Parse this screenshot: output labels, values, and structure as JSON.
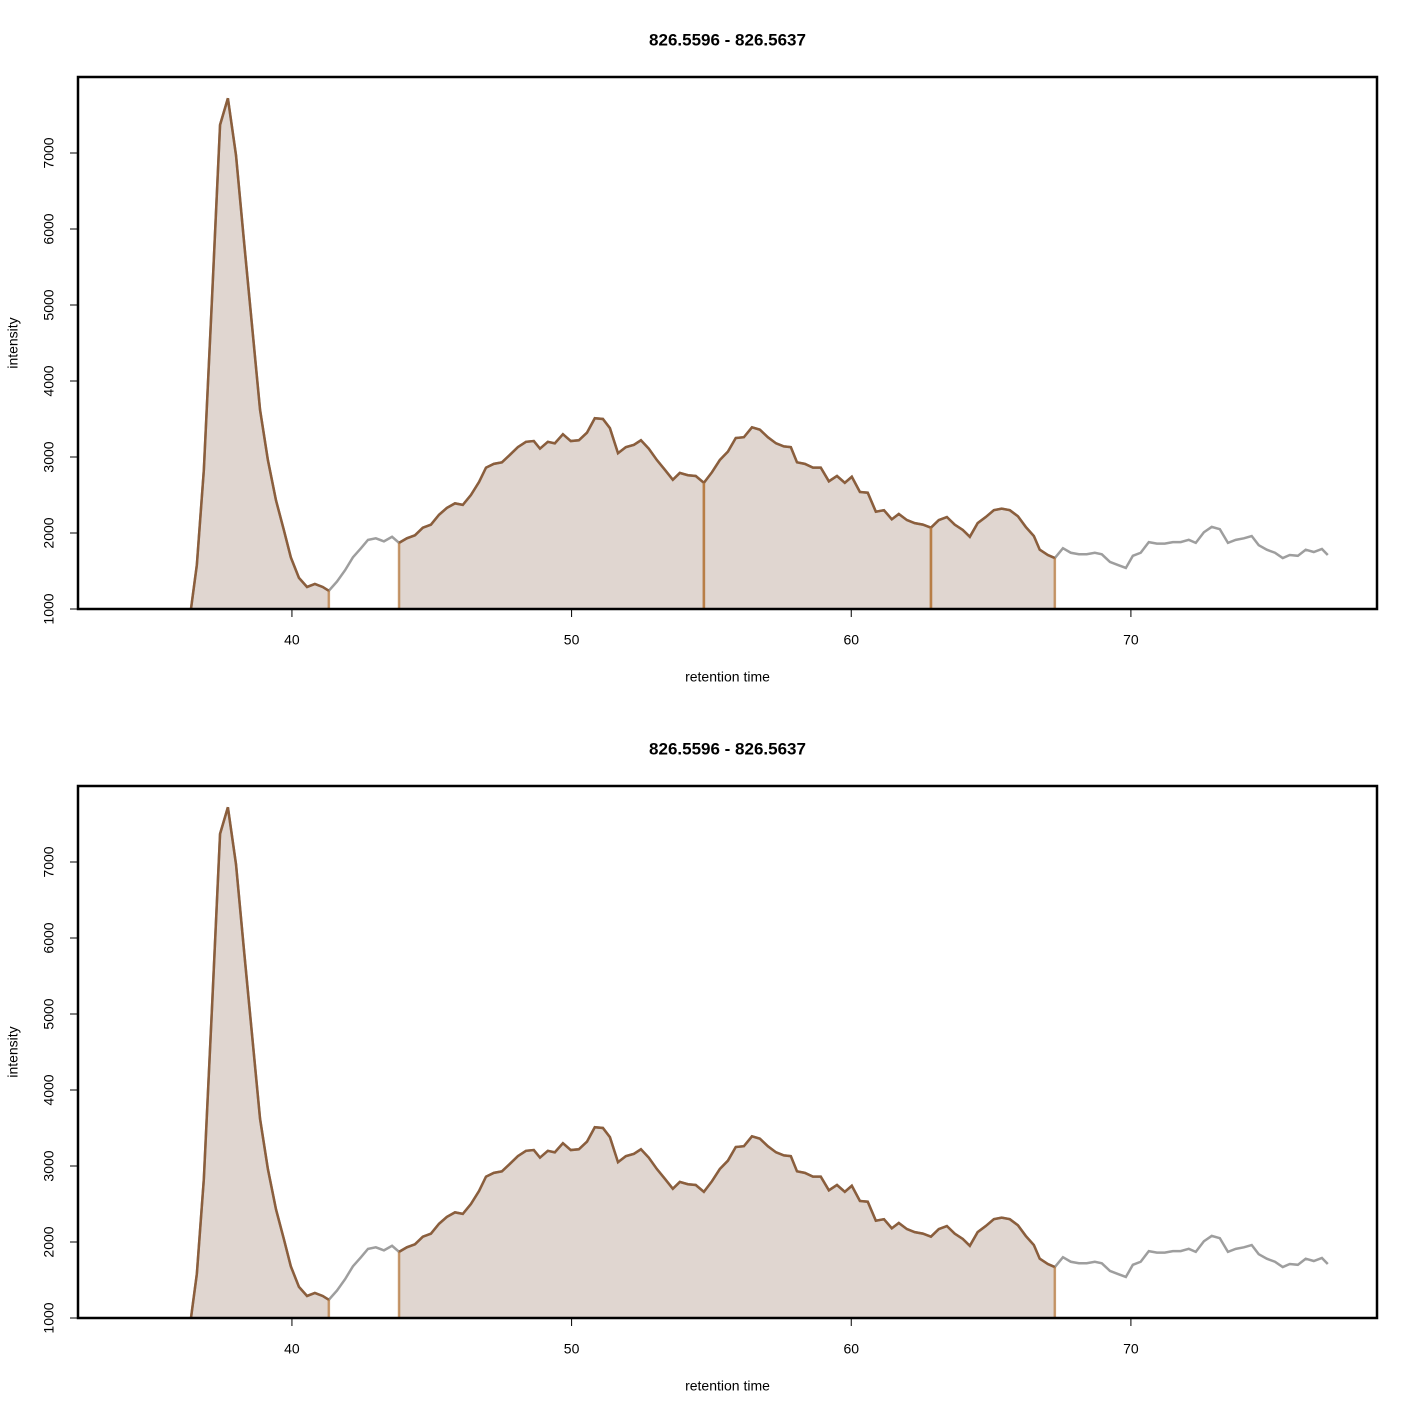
{
  "chart_data": [
    {
      "type": "line",
      "title": "826.5596 - 826.5637",
      "x_label": "retention time",
      "y_label": "intensity",
      "xlim": [
        32.35,
        78.8
      ],
      "ylim": [
        1000,
        8000
      ],
      "xticks": [
        40,
        50,
        60,
        70
      ],
      "yticks": [
        1000,
        2000,
        3000,
        4000,
        5000,
        6000,
        7000
      ],
      "trace_color": "#9e9e9e",
      "peak_line_color": "#8b5e3c",
      "peak_fill_color": "#e0d6d0",
      "peak_border_color": "#b5783e",
      "x": [
        36.39,
        36.6,
        36.85,
        37.14,
        37.43,
        37.71,
        38.0,
        38.28,
        38.57,
        38.86,
        39.14,
        39.43,
        39.71,
        39.96,
        40.25,
        40.54,
        40.82,
        41.1,
        41.32,
        41.61,
        41.9,
        42.18,
        42.47,
        42.72,
        43.0,
        43.29,
        43.58,
        43.83,
        44.11,
        44.4,
        44.68,
        44.97,
        45.26,
        45.54,
        45.83,
        46.11,
        46.4,
        46.69,
        46.94,
        47.22,
        47.51,
        47.8,
        48.08,
        48.37,
        48.65,
        48.87,
        49.15,
        49.4,
        49.69,
        49.97,
        50.26,
        50.55,
        50.83,
        51.12,
        51.37,
        51.66,
        51.94,
        52.23,
        52.48,
        52.76,
        53.05,
        53.34,
        53.62,
        53.87,
        54.16,
        54.44,
        54.73,
        55.02,
        55.3,
        55.59,
        55.87,
        56.16,
        56.45,
        56.73,
        57.02,
        57.31,
        57.59,
        57.84,
        58.06,
        58.34,
        58.63,
        58.91,
        59.2,
        59.49,
        59.77,
        60.02,
        60.31,
        60.59,
        60.88,
        61.17,
        61.45,
        61.7,
        61.99,
        62.27,
        62.56,
        62.85,
        63.13,
        63.42,
        63.7,
        63.99,
        64.24,
        64.52,
        64.81,
        65.1,
        65.38,
        65.67,
        65.96,
        66.24,
        66.53,
        66.74,
        67.03,
        67.28,
        67.57,
        67.85,
        68.14,
        68.42,
        68.71,
        68.96,
        69.25,
        69.53,
        69.82,
        70.07,
        70.35,
        70.64,
        70.93,
        71.21,
        71.5,
        71.78,
        72.07,
        72.32,
        72.61,
        72.89,
        73.18,
        73.47,
        73.75,
        74.04,
        74.32,
        74.57,
        74.86,
        75.15,
        75.43,
        75.68,
        75.97,
        76.25,
        76.54,
        76.83,
        77.04
      ],
      "values": [
        1000,
        1580,
        2830,
        5070,
        7370,
        7720,
        6970,
        5860,
        4740,
        3620,
        2960,
        2430,
        2040,
        1680,
        1410,
        1290,
        1330,
        1290,
        1240,
        1360,
        1510,
        1680,
        1800,
        1910,
        1930,
        1890,
        1950,
        1870,
        1930,
        1970,
        2070,
        2110,
        2240,
        2330,
        2390,
        2370,
        2500,
        2670,
        2860,
        2910,
        2930,
        3030,
        3130,
        3200,
        3210,
        3110,
        3200,
        3180,
        3300,
        3210,
        3220,
        3320,
        3510,
        3500,
        3380,
        3050,
        3130,
        3160,
        3220,
        3110,
        2960,
        2830,
        2700,
        2790,
        2760,
        2750,
        2660,
        2800,
        2960,
        3070,
        3250,
        3260,
        3390,
        3360,
        3260,
        3180,
        3140,
        3130,
        2930,
        2910,
        2860,
        2860,
        2680,
        2750,
        2660,
        2740,
        2540,
        2530,
        2280,
        2300,
        2180,
        2250,
        2170,
        2130,
        2110,
        2070,
        2170,
        2210,
        2110,
        2040,
        1950,
        2130,
        2210,
        2300,
        2320,
        2300,
        2220,
        2080,
        1960,
        1780,
        1710,
        1670,
        1800,
        1740,
        1720,
        1720,
        1740,
        1720,
        1620,
        1580,
        1540,
        1700,
        1740,
        1880,
        1860,
        1860,
        1880,
        1880,
        1910,
        1870,
        2010,
        2080,
        2050,
        1870,
        1910,
        1930,
        1960,
        1840,
        1780,
        1740,
        1670,
        1710,
        1700,
        1780,
        1750,
        1790,
        1710
      ],
      "peaks": [
        [
          36.39,
          41.32
        ],
        [
          43.83,
          54.73
        ],
        [
          54.73,
          62.85
        ],
        [
          62.85,
          67.28
        ]
      ]
    },
    {
      "type": "line",
      "title": "826.5596 - 826.5637",
      "x_label": "retention time",
      "y_label": "intensity",
      "xlim": [
        32.35,
        78.8
      ],
      "ylim": [
        1000,
        8000
      ],
      "xticks": [
        40,
        50,
        60,
        70
      ],
      "yticks": [
        1000,
        2000,
        3000,
        4000,
        5000,
        6000,
        7000
      ],
      "trace_color": "#9e9e9e",
      "peak_line_color": "#8b5e3c",
      "peak_fill_color": "#e0d6d0",
      "peak_border_color": "#b5783e",
      "x": [
        36.39,
        36.6,
        36.85,
        37.14,
        37.43,
        37.71,
        38.0,
        38.28,
        38.57,
        38.86,
        39.14,
        39.43,
        39.71,
        39.96,
        40.25,
        40.54,
        40.82,
        41.1,
        41.32,
        41.61,
        41.9,
        42.18,
        42.47,
        42.72,
        43.0,
        43.29,
        43.58,
        43.83,
        44.11,
        44.4,
        44.68,
        44.97,
        45.26,
        45.54,
        45.83,
        46.11,
        46.4,
        46.69,
        46.94,
        47.22,
        47.51,
        47.8,
        48.08,
        48.37,
        48.65,
        48.87,
        49.15,
        49.4,
        49.69,
        49.97,
        50.26,
        50.55,
        50.83,
        51.12,
        51.37,
        51.66,
        51.94,
        52.23,
        52.48,
        52.76,
        53.05,
        53.34,
        53.62,
        53.87,
        54.16,
        54.44,
        54.73,
        55.02,
        55.3,
        55.59,
        55.87,
        56.16,
        56.45,
        56.73,
        57.02,
        57.31,
        57.59,
        57.84,
        58.06,
        58.34,
        58.63,
        58.91,
        59.2,
        59.49,
        59.77,
        60.02,
        60.31,
        60.59,
        60.88,
        61.17,
        61.45,
        61.7,
        61.99,
        62.27,
        62.56,
        62.85,
        63.13,
        63.42,
        63.7,
        63.99,
        64.24,
        64.52,
        64.81,
        65.1,
        65.38,
        65.67,
        65.96,
        66.24,
        66.53,
        66.74,
        67.03,
        67.28,
        67.57,
        67.85,
        68.14,
        68.42,
        68.71,
        68.96,
        69.25,
        69.53,
        69.82,
        70.07,
        70.35,
        70.64,
        70.93,
        71.21,
        71.5,
        71.78,
        72.07,
        72.32,
        72.61,
        72.89,
        73.18,
        73.47,
        73.75,
        74.04,
        74.32,
        74.57,
        74.86,
        75.15,
        75.43,
        75.68,
        75.97,
        76.25,
        76.54,
        76.83,
        77.04
      ],
      "values": [
        1000,
        1580,
        2830,
        5070,
        7370,
        7720,
        6970,
        5860,
        4740,
        3620,
        2960,
        2430,
        2040,
        1680,
        1410,
        1290,
        1330,
        1290,
        1240,
        1360,
        1510,
        1680,
        1800,
        1910,
        1930,
        1890,
        1950,
        1870,
        1930,
        1970,
        2070,
        2110,
        2240,
        2330,
        2390,
        2370,
        2500,
        2670,
        2860,
        2910,
        2930,
        3030,
        3130,
        3200,
        3210,
        3110,
        3200,
        3180,
        3300,
        3210,
        3220,
        3320,
        3510,
        3500,
        3380,
        3050,
        3130,
        3160,
        3220,
        3110,
        2960,
        2830,
        2700,
        2790,
        2760,
        2750,
        2660,
        2800,
        2960,
        3070,
        3250,
        3260,
        3390,
        3360,
        3260,
        3180,
        3140,
        3130,
        2930,
        2910,
        2860,
        2860,
        2680,
        2750,
        2660,
        2740,
        2540,
        2530,
        2280,
        2300,
        2180,
        2250,
        2170,
        2130,
        2110,
        2070,
        2170,
        2210,
        2110,
        2040,
        1950,
        2130,
        2210,
        2300,
        2320,
        2300,
        2220,
        2080,
        1960,
        1780,
        1710,
        1670,
        1800,
        1740,
        1720,
        1720,
        1740,
        1720,
        1620,
        1580,
        1540,
        1700,
        1740,
        1880,
        1860,
        1860,
        1880,
        1880,
        1910,
        1870,
        2010,
        2080,
        2050,
        1870,
        1910,
        1930,
        1960,
        1840,
        1780,
        1740,
        1670,
        1710,
        1700,
        1780,
        1750,
        1790,
        1710
      ],
      "peaks": [
        [
          36.39,
          41.32
        ],
        [
          43.83,
          67.28
        ]
      ]
    }
  ]
}
